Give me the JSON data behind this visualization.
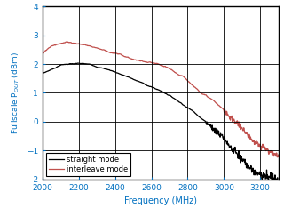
{
  "xlabel": "Frequency (MHz)",
  "ylabel": "Fullscale P$_{OUT}$ (dBm)",
  "xlim": [
    2000,
    3300
  ],
  "ylim": [
    -2,
    4
  ],
  "xticks": [
    2000,
    2200,
    2400,
    2600,
    2800,
    3000,
    3200
  ],
  "yticks": [
    -2,
    -1,
    0,
    1,
    2,
    3,
    4
  ],
  "straight_color": "#000000",
  "interleave_color": "#c0504d",
  "legend_labels": [
    "straight mode",
    "interleave mode"
  ],
  "background_color": "#ffffff",
  "grid_color": "#000000",
  "tick_color": "#0070c0",
  "label_color": "#0070c0",
  "straight_x": [
    2000,
    2050,
    2100,
    2150,
    2200,
    2250,
    2300,
    2350,
    2400,
    2450,
    2500,
    2550,
    2600,
    2650,
    2700,
    2750,
    2800,
    2850,
    2900,
    2950,
    3000,
    3050,
    3100,
    3150,
    3200,
    3250,
    3300
  ],
  "straight_y": [
    1.68,
    1.82,
    1.98,
    2.02,
    2.01,
    1.97,
    1.9,
    1.82,
    1.72,
    1.6,
    1.46,
    1.32,
    1.18,
    1.05,
    0.9,
    0.7,
    0.5,
    0.28,
    0.02,
    -0.25,
    -0.55,
    -0.9,
    -1.25,
    -1.6,
    -1.8,
    -1.92,
    -2.0
  ],
  "interleave_x": [
    2000,
    2050,
    2100,
    2150,
    2200,
    2250,
    2300,
    2350,
    2400,
    2450,
    2500,
    2550,
    2600,
    2650,
    2700,
    2750,
    2800,
    2850,
    2900,
    2950,
    3000,
    3050,
    3100,
    3150,
    3200,
    3250,
    3300
  ],
  "interleave_y": [
    2.35,
    2.65,
    2.78,
    2.8,
    2.78,
    2.72,
    2.65,
    2.57,
    2.48,
    2.38,
    2.28,
    2.2,
    2.12,
    2.0,
    1.82,
    1.62,
    1.42,
    1.15,
    0.95,
    0.72,
    0.4,
    0.1,
    -0.2,
    -0.55,
    -0.85,
    -1.05,
    -1.18
  ]
}
